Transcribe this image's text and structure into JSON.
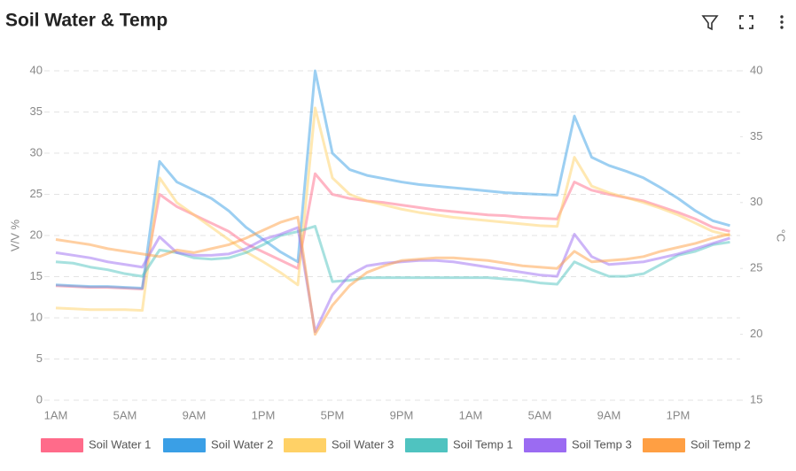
{
  "chart_data": {
    "type": "line",
    "title": "Soil Water & Temp",
    "y_label": "V/V %",
    "y2_label": "°C",
    "categories": [
      "1AM",
      null,
      null,
      null,
      "5AM",
      null,
      null,
      null,
      "9AM",
      null,
      null,
      null,
      "1PM",
      null,
      null,
      null,
      "5PM",
      null,
      null,
      null,
      "9PM",
      null,
      null,
      null,
      "1AM",
      null,
      null,
      null,
      "5AM",
      null,
      null,
      null,
      "9AM",
      null,
      null,
      null,
      "1PM",
      null,
      null,
      null
    ],
    "ylim": [
      0,
      40
    ],
    "yticks": [
      0,
      5,
      10,
      15,
      20,
      25,
      30,
      35,
      40
    ],
    "y2lim": [
      15,
      40
    ],
    "y2ticks": [
      15,
      20,
      25,
      30,
      35,
      40
    ],
    "grid": true,
    "series": [
      {
        "name": "Soil Water 1",
        "color": "#ff6b8a",
        "values": [
          13.9,
          13.8,
          13.7,
          13.7,
          13.6,
          13.5,
          25,
          23.5,
          22.5,
          21.5,
          20.5,
          19,
          18,
          17,
          16,
          27.5,
          25,
          24.5,
          24.2,
          24,
          23.7,
          23.4,
          23.1,
          22.9,
          22.7,
          22.5,
          22.4,
          22.2,
          22.1,
          22,
          26.5,
          25.5,
          25,
          24.6,
          24.2,
          23.5,
          22.8,
          22,
          21,
          20.5
        ]
      },
      {
        "name": "Soil Water 2",
        "color": "#3a9fe6",
        "values": [
          14,
          13.9,
          13.8,
          13.8,
          13.7,
          13.6,
          29,
          26.5,
          25.5,
          24.5,
          23,
          21,
          19.5,
          18,
          16.8,
          40,
          30,
          28,
          27.3,
          26.9,
          26.5,
          26.2,
          26,
          25.8,
          25.6,
          25.4,
          25.2,
          25.1,
          25,
          24.9,
          34.5,
          29.5,
          28.5,
          27.8,
          27,
          25.8,
          24.5,
          23,
          21.8,
          21.2
        ]
      },
      {
        "name": "Soil Water 3",
        "color": "#ffd166",
        "values": [
          11.2,
          11.1,
          11,
          11,
          11,
          10.9,
          27,
          24,
          22.5,
          21,
          19.5,
          18,
          16.8,
          15.5,
          14,
          35.5,
          27,
          25,
          24.2,
          23.7,
          23.2,
          22.8,
          22.5,
          22.2,
          22,
          21.8,
          21.6,
          21.4,
          21.2,
          21.1,
          29.5,
          26,
          25.2,
          24.6,
          24,
          23.3,
          22.5,
          21.5,
          20.5,
          20
        ]
      },
      {
        "name": "Soil Temp 1",
        "color": "#4fc3c0",
        "axis": "y2",
        "values": [
          25.5,
          25.4,
          25.1,
          24.9,
          24.6,
          24.4,
          26.4,
          26.2,
          25.8,
          25.7,
          25.8,
          26.2,
          26.8,
          27.5,
          27.8,
          28.2,
          24,
          24.1,
          24.3,
          24.3,
          24.3,
          24.3,
          24.3,
          24.3,
          24.3,
          24.3,
          24.2,
          24.1,
          23.9,
          23.8,
          25.5,
          24.9,
          24.4,
          24.4,
          24.6,
          25.3,
          26,
          26.3,
          26.8,
          27
        ]
      },
      {
        "name": "Soil Temp 3",
        "color": "#9b6bf2",
        "axis": "y2",
        "values": [
          26.2,
          26,
          25.8,
          25.5,
          25.3,
          25.1,
          27.4,
          26.2,
          26,
          26,
          26.1,
          26.5,
          27.2,
          27.6,
          28.1,
          20.2,
          23,
          24.5,
          25.2,
          25.4,
          25.5,
          25.6,
          25.6,
          25.5,
          25.3,
          25.1,
          24.9,
          24.7,
          24.5,
          24.4,
          27.6,
          25.9,
          25.3,
          25.4,
          25.5,
          25.8,
          26.1,
          26.5,
          26.9,
          27.3
        ]
      },
      {
        "name": "Soil Temp 2",
        "color": "#ff9f43",
        "axis": "y2",
        "values": [
          27.2,
          27,
          26.8,
          26.5,
          26.3,
          26.1,
          25.9,
          26.4,
          26.2,
          26.5,
          26.8,
          27.3,
          27.9,
          28.5,
          28.9,
          20,
          22.2,
          23.7,
          24.7,
          25.2,
          25.6,
          25.7,
          25.8,
          25.8,
          25.7,
          25.6,
          25.4,
          25.2,
          25.1,
          25,
          26.3,
          25.5,
          25.6,
          25.7,
          25.9,
          26.3,
          26.6,
          26.9,
          27.3,
          27.6
        ]
      }
    ]
  }
}
